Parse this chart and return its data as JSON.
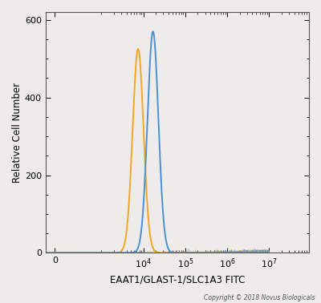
{
  "title": "",
  "xlabel": "EAAT1/GLAST-1/SLC1A3 FITC",
  "ylabel": "Relative Cell Number",
  "copyright": "Copyright © 2018 Novus Biologicals",
  "ylim": [
    0,
    620
  ],
  "yticks": [
    0,
    200,
    400,
    600
  ],
  "orange_peak_x": 7500,
  "orange_peak_y": 525,
  "orange_sigma": 0.13,
  "blue_peak_x": 17000,
  "blue_peak_y": 570,
  "blue_sigma": 0.13,
  "orange_color": "#F5A623",
  "blue_color": "#4A90D9",
  "bg_color": "#EDECEA",
  "plot_bg_color": "#EDECEA",
  "linewidth": 1.4,
  "linthresh": 1000,
  "xlim": [
    -200,
    10000000.0
  ]
}
